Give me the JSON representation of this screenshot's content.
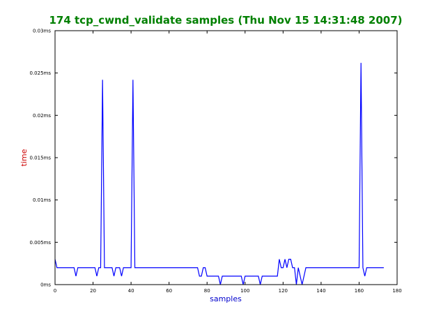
{
  "colors": {
    "title": "#008000",
    "ylabel": "#cc0000",
    "xlabel": "#0000cc",
    "line": "#0000ff",
    "axes": "#000000"
  },
  "chart_data": {
    "type": "line",
    "title": "174 tcp_cwnd_validate samples (Thu Nov 15 14:31:48 2007)",
    "xlabel": "samples",
    "ylabel": "time",
    "xlim": [
      0,
      180
    ],
    "ylim": [
      0,
      0.03
    ],
    "grid": false,
    "xticks": [
      0,
      20,
      40,
      60,
      80,
      100,
      120,
      140,
      160,
      180
    ],
    "xtick_labels": [
      "0",
      "20",
      "40",
      "60",
      "80",
      "100",
      "120",
      "140",
      "160",
      "180"
    ],
    "yticks": [
      0,
      0.005,
      0.01,
      0.015,
      0.02,
      0.025,
      0.03
    ],
    "ytick_labels": [
      "0ms",
      "0.005ms",
      "0.01ms",
      "0.015ms",
      "0.02ms",
      "0.025ms",
      "0.03ms"
    ],
    "series": [
      {
        "x": [
          0,
          1,
          10,
          11,
          12,
          21,
          22,
          23,
          24,
          25,
          26,
          30,
          31,
          32,
          34,
          35,
          36,
          40,
          41,
          42,
          75,
          76,
          77,
          78,
          79,
          80,
          86,
          87,
          88,
          98,
          99,
          100,
          107,
          108,
          109,
          117,
          118,
          119,
          120,
          121,
          122,
          123,
          124,
          125,
          126,
          127,
          128,
          129,
          130,
          131,
          132,
          160,
          161,
          162,
          163,
          164,
          173
        ],
        "y": [
          0.003,
          0.002,
          0.002,
          0.001,
          0.002,
          0.002,
          0.001,
          0.002,
          0.002,
          0.0242,
          0.002,
          0.002,
          0.001,
          0.002,
          0.002,
          0.001,
          0.002,
          0.002,
          0.0242,
          0.002,
          0.002,
          0.001,
          0.001,
          0.002,
          0.002,
          0.001,
          0.001,
          0.0,
          0.001,
          0.001,
          0.0,
          0.001,
          0.001,
          0.0,
          0.001,
          0.001,
          0.003,
          0.002,
          0.002,
          0.003,
          0.002,
          0.003,
          0.003,
          0.002,
          0.002,
          0.0,
          0.002,
          0.001,
          0.0,
          0.001,
          0.002,
          0.002,
          0.0262,
          0.002,
          0.001,
          0.002,
          0.002
        ]
      }
    ]
  }
}
